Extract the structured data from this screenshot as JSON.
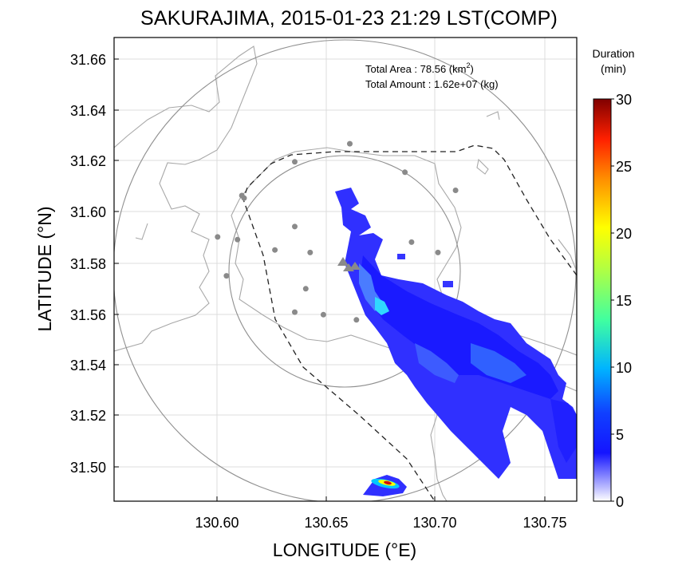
{
  "title": "SAKURAJIMA, 2015-01-23 21:29 LST(COMP)",
  "x_axis": {
    "label": "LONGITUDE (°E)",
    "ticks": [
      "130.60",
      "130.65",
      "130.70",
      "130.75"
    ]
  },
  "y_axis": {
    "label": "LATITUDE (°N)",
    "ticks": [
      "31.66",
      "31.64",
      "31.62",
      "31.60",
      "31.58",
      "31.56",
      "31.54",
      "31.52",
      "31.50"
    ]
  },
  "stats": {
    "area_label": "Total Area   : 78.56 (km",
    "area_sup": "2",
    "area_close": ")",
    "amount_label": "Total Amount : 1.62e+07 (kg)"
  },
  "colorbar": {
    "title_line1": "Duration",
    "title_line2": "(min)",
    "ticks": [
      "30",
      "25",
      "20",
      "15",
      "10",
      "5",
      "0"
    ],
    "range": [
      0,
      30
    ],
    "colors": [
      "#ffffff",
      "#1010ff",
      "#00c8ff",
      "#40ff80",
      "#ffff00",
      "#ff8000",
      "#ff0000",
      "#800000"
    ]
  },
  "chart_data": {
    "type": "heatmap",
    "title": "SAKURAJIMA, 2015-01-23 21:29 LST(COMP)",
    "xlabel": "LONGITUDE (°E)",
    "ylabel": "LATITUDE (°N)",
    "xlim": [
      130.553,
      130.763
    ],
    "ylim": [
      31.488,
      31.667
    ],
    "grid": true,
    "colorbar_label": "Duration (min)",
    "colorbar_range": [
      0,
      30
    ],
    "plume": {
      "description_values": "Ash fall duration mostly 3-8 min extending SE from crater",
      "peak_duration_min": 28,
      "peak_location": [
        130.678,
        31.494
      ]
    },
    "volcano_marks": [
      [
        130.659,
        31.581
      ],
      [
        130.662,
        31.578
      ],
      [
        130.668,
        31.579
      ]
    ],
    "stations": [
      [
        130.66,
        31.626
      ],
      [
        130.635,
        31.619
      ],
      [
        130.685,
        31.615
      ],
      [
        130.708,
        31.608
      ],
      [
        130.611,
        31.606
      ],
      [
        130.612,
        31.605
      ],
      [
        130.6,
        31.59
      ],
      [
        130.609,
        31.589
      ],
      [
        130.688,
        31.588
      ],
      [
        130.626,
        31.585
      ],
      [
        130.635,
        31.594
      ],
      [
        130.642,
        31.584
      ],
      [
        130.7,
        31.584
      ],
      [
        130.604,
        31.575
      ],
      [
        130.64,
        31.57
      ],
      [
        130.635,
        31.561
      ],
      [
        130.648,
        31.56
      ],
      [
        130.663,
        31.558
      ]
    ]
  }
}
